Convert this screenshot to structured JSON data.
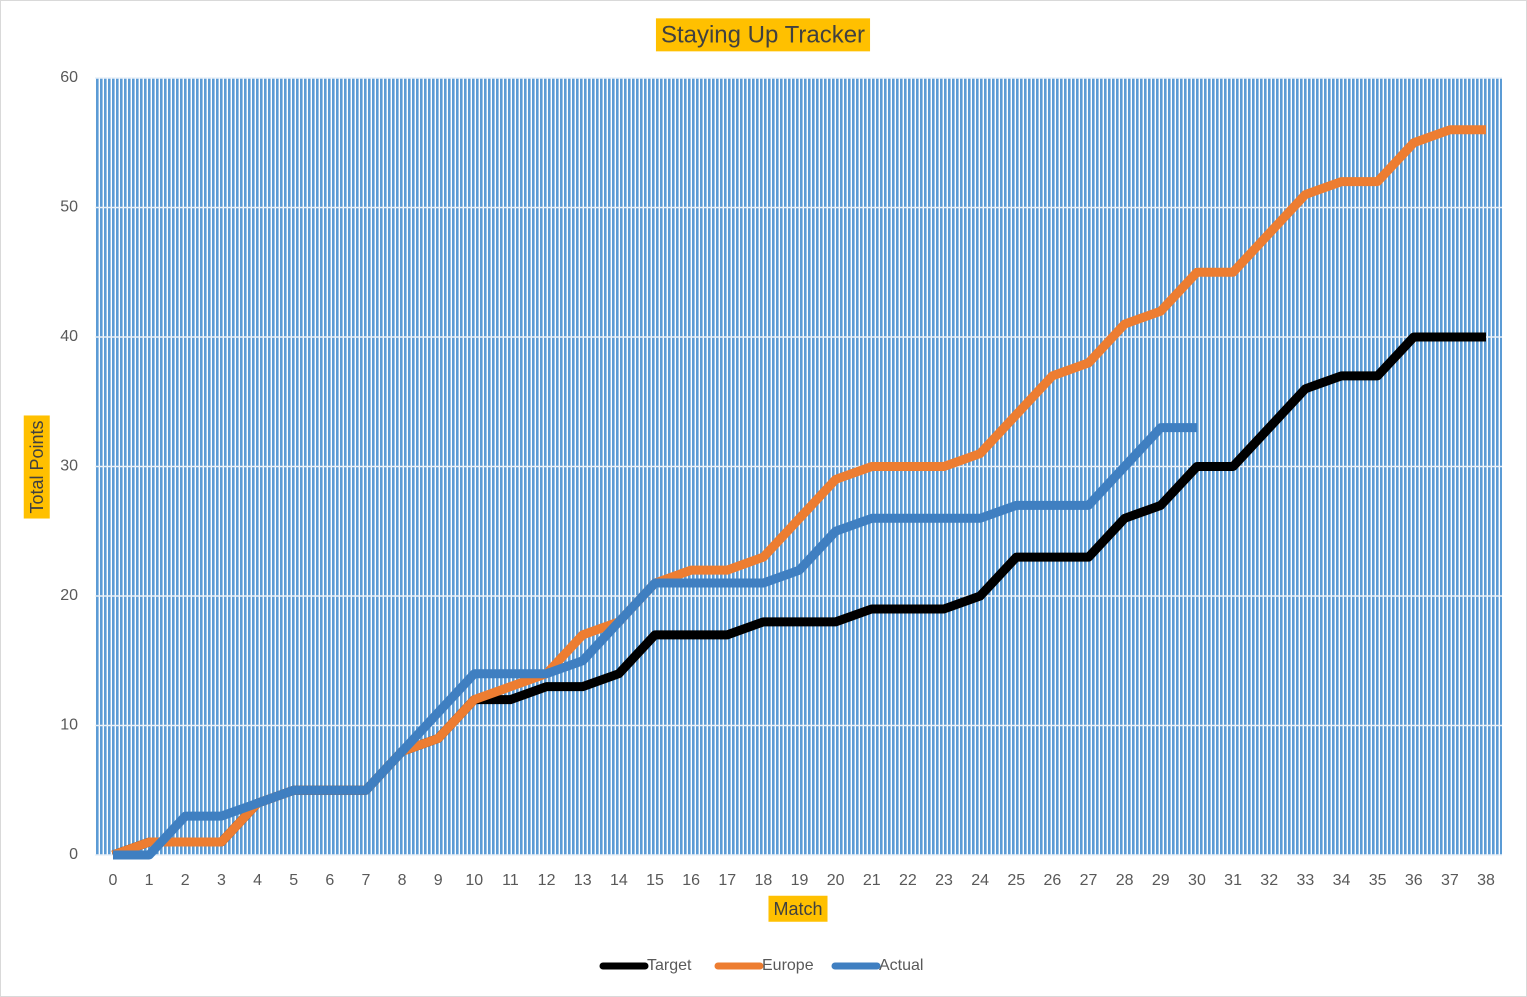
{
  "chart_data": {
    "type": "line",
    "title": "Staying Up Tracker",
    "x_label": "Match",
    "y_label": "Total Points",
    "categories": [
      0,
      1,
      2,
      3,
      4,
      5,
      6,
      7,
      8,
      9,
      10,
      11,
      12,
      13,
      14,
      15,
      16,
      17,
      18,
      19,
      20,
      21,
      22,
      23,
      24,
      25,
      26,
      27,
      28,
      29,
      30,
      31,
      32,
      33,
      34,
      35,
      36,
      37,
      38
    ],
    "series": [
      {
        "name": "Target",
        "color": "#000000",
        "values": [
          0,
          1,
          1,
          1,
          4,
          5,
          5,
          5,
          8,
          9,
          12,
          12,
          13,
          13,
          14,
          17,
          17,
          17,
          18,
          18,
          18,
          19,
          19,
          19,
          20,
          23,
          23,
          23,
          26,
          27,
          30,
          30,
          33,
          36,
          37,
          37,
          40,
          40,
          40
        ]
      },
      {
        "name": "Europe",
        "color": "#ed7d31",
        "values": [
          0,
          1,
          1,
          1,
          4,
          5,
          5,
          5,
          8,
          9,
          12,
          13,
          14,
          17,
          18,
          21,
          22,
          22,
          23,
          26,
          29,
          30,
          30,
          30,
          31,
          34,
          37,
          38,
          41,
          42,
          45,
          45,
          48,
          51,
          52,
          52,
          55,
          56,
          56
        ]
      },
      {
        "name": "Actual",
        "color": "#3f7fc1",
        "values": [
          0,
          0,
          3,
          3,
          4,
          5,
          5,
          5,
          8,
          11,
          14,
          14,
          14,
          15,
          18,
          21,
          21,
          21,
          21,
          22,
          25,
          26,
          26,
          26,
          26,
          27,
          27,
          27,
          30,
          33,
          33,
          null,
          null,
          null,
          null,
          null,
          null,
          null,
          null
        ]
      }
    ],
    "ylim": [
      0,
      60
    ],
    "yticks": [
      0,
      10,
      20,
      30,
      40,
      50,
      60
    ],
    "grid": true,
    "legend": "bottom"
  }
}
